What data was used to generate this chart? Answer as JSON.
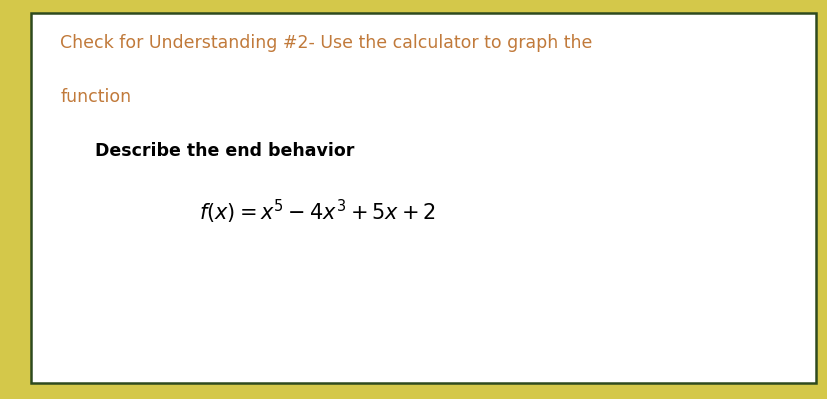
{
  "title_line1": "Check for Understanding #2- Use the calculator to graph the",
  "title_line2": "function",
  "title_color": "#C17A3B",
  "subtitle": "Describe the end behavior",
  "subtitle_color": "#000000",
  "formula": "$f(x) = x^5 - 4x^3 + 5x + 2$",
  "formula_color": "#000000",
  "background_color": "#FFFFFF",
  "outer_border_color": "#D4C84A",
  "inner_border_color": "#2E4A1E",
  "title_fontsize": 12.5,
  "subtitle_fontsize": 12.5,
  "formula_fontsize": 15
}
